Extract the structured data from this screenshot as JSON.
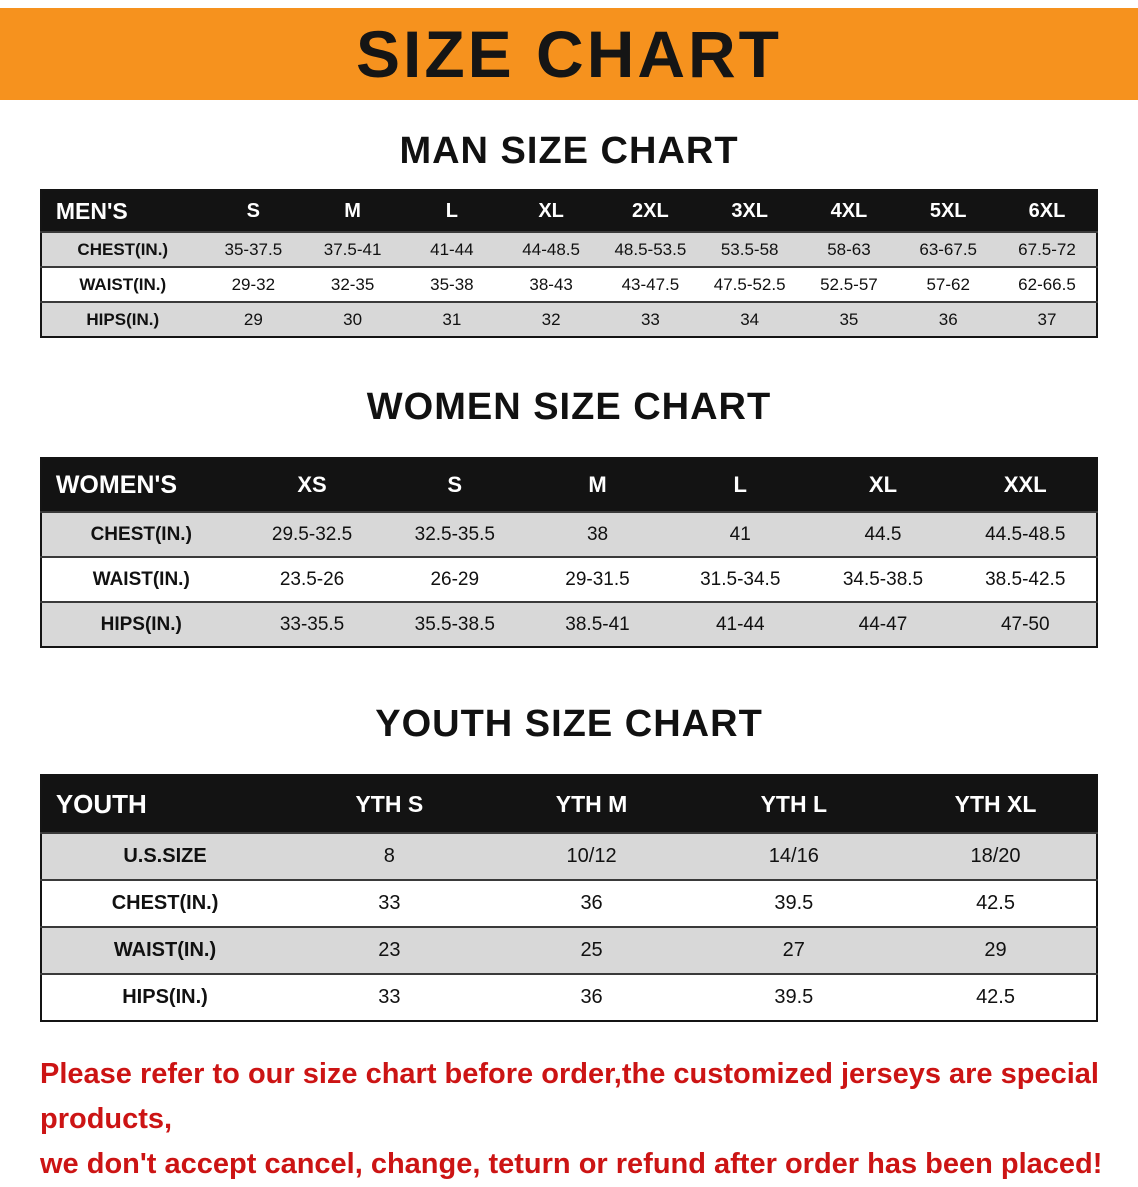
{
  "banner": {
    "title": "SIZE CHART",
    "background_color": "#F6921E",
    "text_color": "#151515"
  },
  "sections": [
    {
      "name": "men",
      "title": "MAN SIZE CHART",
      "header": [
        "MEN'S",
        "S",
        "M",
        "L",
        "XL",
        "2XL",
        "3XL",
        "4XL",
        "5XL",
        "6XL"
      ],
      "rows": [
        [
          "CHEST(IN.)",
          "35-37.5",
          "37.5-41",
          "41-44",
          "44-48.5",
          "48.5-53.5",
          "53.5-58",
          "58-63",
          "63-67.5",
          "67.5-72"
        ],
        [
          "WAIST(IN.)",
          "29-32",
          "32-35",
          "35-38",
          "38-43",
          "43-47.5",
          "47.5-52.5",
          "52.5-57",
          "57-62",
          "62-66.5"
        ],
        [
          "HIPS(IN.)",
          "29",
          "30",
          "31",
          "32",
          "33",
          "34",
          "35",
          "36",
          "37"
        ]
      ]
    },
    {
      "name": "women",
      "title": "WOMEN SIZE CHART",
      "header": [
        "WOMEN'S",
        "XS",
        "S",
        "M",
        "L",
        "XL",
        "XXL"
      ],
      "rows": [
        [
          "CHEST(IN.)",
          "29.5-32.5",
          "32.5-35.5",
          "38",
          "41",
          "44.5",
          "44.5-48.5"
        ],
        [
          "WAIST(IN.)",
          "23.5-26",
          "26-29",
          "29-31.5",
          "31.5-34.5",
          "34.5-38.5",
          "38.5-42.5"
        ],
        [
          "HIPS(IN.)",
          "33-35.5",
          "35.5-38.5",
          "38.5-41",
          "41-44",
          "44-47",
          "47-50"
        ]
      ]
    },
    {
      "name": "youth",
      "title": "YOUTH SIZE CHART",
      "header": [
        "YOUTH",
        "YTH S",
        "YTH M",
        "YTH L",
        "YTH XL"
      ],
      "rows": [
        [
          "U.S.SIZE",
          "8",
          "10/12",
          "14/16",
          "18/20"
        ],
        [
          "CHEST(IN.)",
          "33",
          "36",
          "39.5",
          "42.5"
        ],
        [
          "WAIST(IN.)",
          "23",
          "25",
          "27",
          "29"
        ],
        [
          "HIPS(IN.)",
          "33",
          "36",
          "39.5",
          "42.5"
        ]
      ]
    }
  ],
  "disclaimer": {
    "color": "#CC1414",
    "line1": "Please refer to our size chart before order,the customized jerseys are special products,",
    "line2": "we don't accept cancel, change, teturn or refund after order has been placed!"
  }
}
